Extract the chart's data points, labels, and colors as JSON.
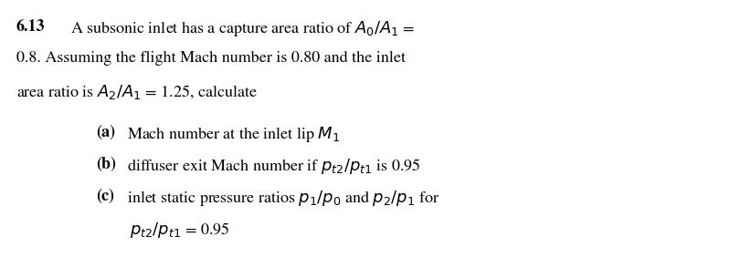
{
  "background_color": "#ffffff",
  "fig_width": 8.1,
  "fig_height": 3.05,
  "dpi": 100,
  "problem_number": "6.13",
  "line1_normal": "        A subsonic inlet has a capture area ratio of $A_0/A_1$ =",
  "line2": "0.8. Assuming the flight Mach number is 0.80 and the inlet",
  "line3": "area ratio is $A_2/A_1$ = 1.25, calculate",
  "item_a_bold": "(a)",
  "item_a_normal": "  Mach number at the inlet lip $M_1$",
  "item_b_bold": "(b)",
  "item_b_normal": "  diffuser exit Mach number if $p_{t2}/p_{t1}$ is 0.95",
  "item_c_bold": "(c)",
  "item_c_normal": "  inlet static pressure ratios $p_1/p_0$ and $p_2/p_1$ for",
  "item_c2": "     $p_{t2}/p_{t1}$ = 0.95",
  "font_size": 13.0,
  "text_color": "#000000",
  "font_family": "STIXGeneral"
}
